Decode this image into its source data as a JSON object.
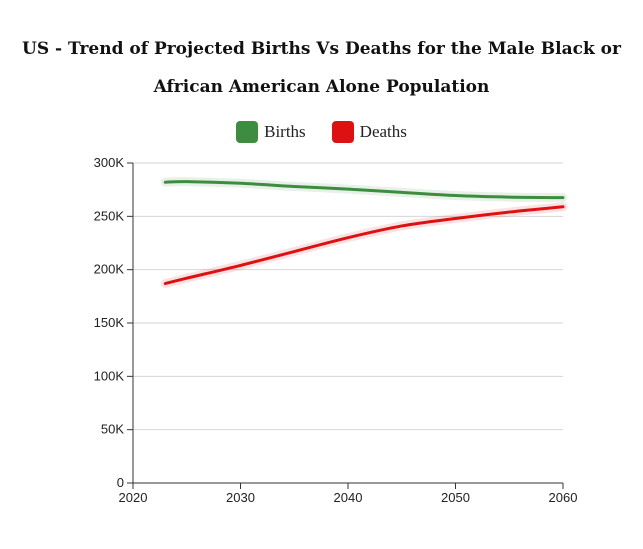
{
  "chart_data": {
    "type": "line",
    "title": "US - Trend of Projected Births Vs Deaths for the Male Black or African American Alone Population",
    "xlim": [
      2020,
      2060
    ],
    "ylim": [
      0,
      300000
    ],
    "x_ticks": [
      "2020",
      "2030",
      "2040",
      "2050",
      "2060"
    ],
    "x_tick_values": [
      2020,
      2030,
      2040,
      2050,
      2060
    ],
    "y_ticks": [
      "0",
      "50K",
      "100K",
      "150K",
      "200K",
      "250K",
      "300K"
    ],
    "y_tick_values": [
      0,
      50000,
      100000,
      150000,
      200000,
      250000,
      300000
    ],
    "grid": true,
    "legend_position": "top-center",
    "series": [
      {
        "name": "Births",
        "color": "#3d8c40",
        "x": [
          2023,
          2025,
          2030,
          2035,
          2040,
          2045,
          2050,
          2055,
          2060
        ],
        "values": [
          282000,
          282500,
          281000,
          278000,
          275500,
          272500,
          269500,
          268000,
          267500
        ]
      },
      {
        "name": "Deaths",
        "color": "#dd1111",
        "x": [
          2023,
          2025,
          2030,
          2035,
          2040,
          2045,
          2050,
          2055,
          2060
        ],
        "values": [
          187000,
          192000,
          204000,
          217000,
          230000,
          241000,
          248000,
          254000,
          259000
        ]
      }
    ]
  }
}
